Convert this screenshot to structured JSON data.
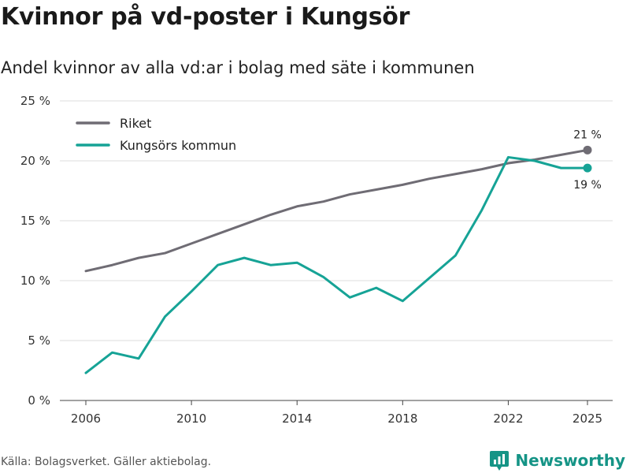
{
  "header": {
    "title": "Kvinnor på vd-poster i Kungsör",
    "subtitle": "Andel kvinnor av alla vd:ar i bolag med säte i kommunen"
  },
  "footer": {
    "source": "Källa: Bolagsverket. Gäller aktiebolag.",
    "brand": "Newsworthy",
    "brand_icon": "newsworthy-logo-icon"
  },
  "colors": {
    "riket": "#6f6c74",
    "kommun": "#16a396",
    "grid": "#dcdcdc",
    "brand": "#159486"
  },
  "chart_data": {
    "type": "line",
    "title": "Kvinnor på vd-poster i Kungsör",
    "subtitle": "Andel kvinnor av alla vd:ar i bolag med säte i kommunen",
    "xlabel": "",
    "ylabel": "",
    "x": [
      2006,
      2007,
      2008,
      2009,
      2010,
      2011,
      2012,
      2013,
      2014,
      2015,
      2016,
      2017,
      2018,
      2019,
      2020,
      2021,
      2022,
      2023,
      2024,
      2025
    ],
    "x_ticks": [
      2006,
      2010,
      2014,
      2018,
      2022,
      2025
    ],
    "x_tick_labels": [
      "2006",
      "2010",
      "2014",
      "2018",
      "2022",
      "2025"
    ],
    "xlim": [
      2006,
      2025
    ],
    "ylim": [
      0,
      25
    ],
    "y_ticks": [
      0,
      5,
      10,
      15,
      20,
      25
    ],
    "y_tick_labels": [
      "0 %",
      "5 %",
      "10 %",
      "15 %",
      "20 %",
      "25 %"
    ],
    "grid": true,
    "legend_position": "top-left",
    "series": [
      {
        "name": "Riket",
        "color": "#6f6c74",
        "values": [
          10.8,
          11.3,
          11.9,
          12.3,
          13.1,
          13.9,
          14.7,
          15.5,
          16.2,
          16.6,
          17.2,
          17.6,
          18.0,
          18.5,
          18.9,
          19.3,
          19.8,
          20.1,
          20.5,
          20.9
        ],
        "end_label": "21 %"
      },
      {
        "name": "Kungsörs kommun",
        "color": "#16a396",
        "values": [
          2.3,
          4.0,
          3.5,
          7.0,
          9.1,
          11.3,
          11.9,
          11.3,
          11.5,
          10.3,
          8.6,
          9.4,
          8.3,
          10.2,
          12.1,
          15.9,
          20.3,
          20.0,
          19.4,
          19.4
        ],
        "end_label": "19 %"
      }
    ]
  }
}
